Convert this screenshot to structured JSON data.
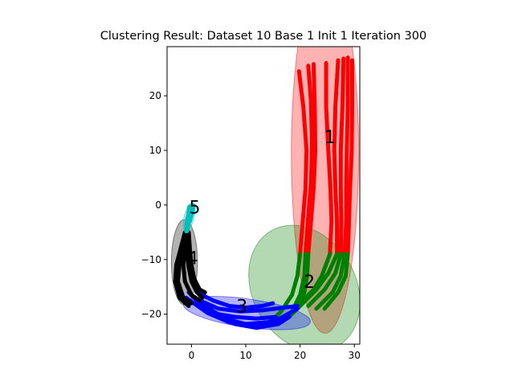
{
  "chart_data": {
    "type": "scatter",
    "title": "Clustering Result: Dataset 10 Base 1 Init 1 Iteration 300",
    "xlabel": "",
    "ylabel": "",
    "xlim": [
      -4.5,
      31
    ],
    "ylim": [
      -25.5,
      29
    ],
    "x_ticks": [
      0,
      10,
      20,
      30
    ],
    "y_ticks": [
      -20,
      -10,
      0,
      10,
      20
    ],
    "grid": false,
    "clusters": [
      {
        "id": 1,
        "label": "1",
        "color": "#ff0000",
        "ellipse": {
          "cx": 24.6,
          "cy": 9.5,
          "rx": 6.2,
          "ry": 33,
          "angle": 0
        },
        "curves": [
          [
            [
              19.8,
              24.5
            ],
            [
              20.6,
              18
            ],
            [
              21.2,
              10
            ],
            [
              21.0,
              3
            ],
            [
              20.5,
              -3
            ],
            [
              20.0,
              -9
            ]
          ],
          [
            [
              21.5,
              25.5
            ],
            [
              22.0,
              19
            ],
            [
              22.2,
              11
            ],
            [
              22.0,
              4
            ],
            [
              21.5,
              -2
            ],
            [
              21.0,
              -9
            ]
          ],
          [
            [
              22.5,
              25.8
            ],
            [
              22.7,
              18
            ],
            [
              22.8,
              10
            ],
            [
              22.5,
              3
            ],
            [
              22.0,
              -3
            ],
            [
              21.5,
              -9
            ]
          ],
          [
            [
              24.8,
              26.0
            ],
            [
              24.8,
              18
            ],
            [
              25.2,
              10
            ],
            [
              25.6,
              3
            ],
            [
              25.8,
              -3
            ],
            [
              25.5,
              -9
            ]
          ],
          [
            [
              27.0,
              26.5
            ],
            [
              26.5,
              18
            ],
            [
              26.3,
              10
            ],
            [
              26.5,
              3
            ],
            [
              26.8,
              -3
            ],
            [
              26.8,
              -9
            ]
          ],
          [
            [
              28.0,
              26.8
            ],
            [
              27.8,
              18
            ],
            [
              27.5,
              10
            ],
            [
              27.5,
              3
            ],
            [
              27.6,
              -3
            ],
            [
              27.5,
              -9
            ]
          ],
          [
            [
              28.8,
              27.0
            ],
            [
              28.8,
              18
            ],
            [
              28.6,
              10
            ],
            [
              28.5,
              3
            ],
            [
              28.5,
              -3
            ],
            [
              28.2,
              -9
            ]
          ],
          [
            [
              29.6,
              26.5
            ],
            [
              29.6,
              18
            ],
            [
              29.5,
              10
            ],
            [
              29.2,
              3
            ],
            [
              29.0,
              -3
            ],
            [
              28.8,
              -9
            ]
          ]
        ]
      },
      {
        "id": 2,
        "label": "2",
        "color": "#008000",
        "ellipse": {
          "cx": 20.8,
          "cy": -15.3,
          "rx": 9.5,
          "ry": 12.2,
          "angle": -30
        },
        "curves": [
          [
            [
              20.0,
              -9
            ],
            [
              19.5,
              -13
            ],
            [
              18.5,
              -16.5
            ],
            [
              16.5,
              -19.5
            ],
            [
              15.5,
              -20.5
            ]
          ],
          [
            [
              21.0,
              -9
            ],
            [
              20.8,
              -13
            ],
            [
              20.0,
              -16.5
            ],
            [
              18.5,
              -19.5
            ],
            [
              17.5,
              -20.5
            ]
          ],
          [
            [
              21.5,
              -9
            ],
            [
              21.3,
              -13
            ],
            [
              20.8,
              -16
            ],
            [
              19.5,
              -19
            ],
            [
              18.0,
              -20.5
            ]
          ],
          [
            [
              25.5,
              -9
            ],
            [
              24.0,
              -13
            ],
            [
              22.5,
              -15.5
            ],
            [
              19.5,
              -18.5
            ]
          ],
          [
            [
              26.8,
              -9
            ],
            [
              25.2,
              -12.5
            ],
            [
              23.0,
              -15.5
            ],
            [
              19.5,
              -19
            ]
          ],
          [
            [
              27.5,
              -9
            ],
            [
              26.5,
              -12.5
            ],
            [
              24.5,
              -15.5
            ],
            [
              21.5,
              -18.5
            ]
          ],
          [
            [
              28.2,
              -9
            ],
            [
              27.5,
              -13
            ],
            [
              26.0,
              -16
            ],
            [
              23.0,
              -19
            ]
          ],
          [
            [
              28.8,
              -9
            ],
            [
              28.4,
              -13
            ],
            [
              27.0,
              -16
            ],
            [
              24.5,
              -19
            ]
          ]
        ]
      },
      {
        "id": 3,
        "label": "3",
        "color": "#0000ff",
        "ellipse": {
          "cx": 10.2,
          "cy": -19.8,
          "rx": 11.8,
          "ry": 2.6,
          "angle": 8
        },
        "curves": [
          [
            [
              -0.5,
              -16
            ],
            [
              2,
              -18.5
            ],
            [
              5,
              -20
            ],
            [
              8,
              -20.5
            ],
            [
              12,
              -20.8
            ],
            [
              15.5,
              -20.5
            ]
          ],
          [
            [
              0,
              -16.5
            ],
            [
              3,
              -18.8
            ],
            [
              6,
              -20.8
            ],
            [
              10,
              -21.8
            ],
            [
              14,
              -21.5
            ],
            [
              17.5,
              -20.5
            ]
          ],
          [
            [
              0.5,
              -17
            ],
            [
              4,
              -19.5
            ],
            [
              8,
              -21.8
            ],
            [
              12,
              -22.5
            ],
            [
              16,
              -21.8
            ],
            [
              18.0,
              -20.5
            ]
          ],
          [
            [
              1,
              -16
            ],
            [
              4,
              -17.5
            ],
            [
              7,
              -18.5
            ],
            [
              10,
              -18.8
            ],
            [
              13,
              -18.5
            ],
            [
              15,
              -18
            ]
          ],
          [
            [
              1.5,
              -17.5
            ],
            [
              5,
              -19
            ],
            [
              9,
              -19.5
            ],
            [
              13,
              -19.3
            ],
            [
              17,
              -18.8
            ],
            [
              19.5,
              -18.5
            ]
          ],
          [
            [
              -1,
              -17
            ],
            [
              3,
              -19.8
            ],
            [
              7,
              -21.5
            ],
            [
              11,
              -22.2
            ],
            [
              15,
              -21.5
            ],
            [
              19.5,
              -19
            ]
          ]
        ]
      },
      {
        "id": 4,
        "label": "4",
        "color": "#000000",
        "ellipse": {
          "cx": -1.3,
          "cy": -10.5,
          "rx": 2.4,
          "ry": 7.8,
          "angle": 0
        },
        "curves": [
          [
            [
              -1.0,
              -5
            ],
            [
              -1.5,
              -8
            ],
            [
              -2.2,
              -11
            ],
            [
              -2.5,
              -14
            ],
            [
              -1.5,
              -17
            ],
            [
              0,
              -18
            ]
          ],
          [
            [
              -0.8,
              -5
            ],
            [
              -1.2,
              -8
            ],
            [
              -1.5,
              -11
            ],
            [
              -1.2,
              -14
            ],
            [
              0,
              -16.5
            ],
            [
              1.5,
              -17.5
            ]
          ],
          [
            [
              -0.6,
              -5
            ],
            [
              -0.8,
              -8
            ],
            [
              -0.6,
              -11
            ],
            [
              0,
              -14
            ],
            [
              1,
              -16
            ],
            [
              2,
              -17
            ]
          ],
          [
            [
              -0.5,
              -5
            ],
            [
              -0.3,
              -8
            ],
            [
              0,
              -11
            ],
            [
              0.5,
              -13.5
            ],
            [
              1.5,
              -15.5
            ],
            [
              2.5,
              -16
            ]
          ],
          [
            [
              -1.2,
              -5
            ],
            [
              -2.0,
              -8
            ],
            [
              -2.8,
              -11
            ],
            [
              -3.0,
              -14
            ],
            [
              -2.2,
              -17
            ],
            [
              -0.5,
              -18.5
            ]
          ]
        ]
      },
      {
        "id": 5,
        "label": "5",
        "color": "#00bfbf",
        "ellipse": {
          "cx": -0.4,
          "cy": -2.1,
          "rx": 0.9,
          "ry": 2.6,
          "angle": 15
        },
        "curves": [
          [
            [
              -0.4,
              -0.3
            ],
            [
              -0.6,
              -1.8
            ],
            [
              -0.9,
              -3.4
            ],
            [
              -1.0,
              -4.8
            ]
          ],
          [
            [
              0.1,
              -0.2
            ],
            [
              -0.2,
              -1.8
            ],
            [
              -0.6,
              -3.4
            ],
            [
              -0.8,
              -4.8
            ]
          ],
          [
            [
              0.4,
              -0.1
            ],
            [
              0.1,
              -1.5
            ],
            [
              -0.3,
              -3.0
            ]
          ]
        ]
      }
    ],
    "label_positions": [
      {
        "text": "1",
        "x": 25.5,
        "y": 12.5
      },
      {
        "text": "2",
        "x": 21.7,
        "y": -14
      },
      {
        "text": "3",
        "x": 9.3,
        "y": -18.5
      },
      {
        "text": "4",
        "x": 0.2,
        "y": -9.7
      },
      {
        "text": "5",
        "x": 0.6,
        "y": -0.4
      }
    ]
  }
}
